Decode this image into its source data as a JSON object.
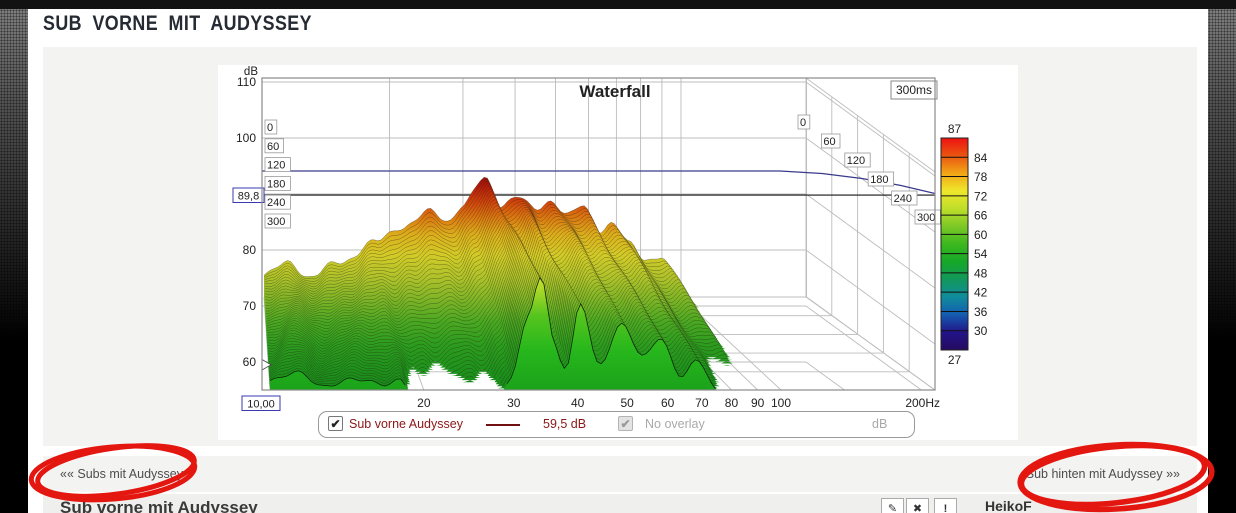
{
  "page": {
    "title": "SUB VORNE MIT AUDYSSEY",
    "nav": {
      "prev": "«« Subs mit Audyssey",
      "next": "Sub hinten mit Audyssey »»",
      "annotation_color": "#e41710"
    },
    "post": {
      "heading": "Sub vorne mit Audyssey",
      "author": "HeikoF",
      "actions": {
        "edit": "✎",
        "delete": "✖",
        "report": "!"
      }
    }
  },
  "chart_data": {
    "type": "waterfall",
    "title": "Waterfall",
    "window": "300ms",
    "ylabel": "dB",
    "y_ticks": [
      110,
      100,
      90,
      80,
      70,
      60
    ],
    "ylim": [
      55,
      110
    ],
    "x_ticks": [
      20,
      30,
      40,
      50,
      60,
      70,
      80,
      90,
      100
    ],
    "x_end_label": "200Hz",
    "xlim_hz": [
      10,
      200
    ],
    "time_ticks_ms": [
      0,
      60,
      120,
      180,
      240,
      300
    ],
    "cursor": {
      "freq": "10,00",
      "db_line": "89,8",
      "spl": "59,5 dB"
    },
    "overlay_line": {
      "color": "#3a3a8c",
      "flat_db": 93.8,
      "end_db": 89.8
    },
    "colorbar": {
      "max": 87,
      "min": 27,
      "ticks": [
        84,
        78,
        72,
        66,
        60,
        54,
        48,
        42,
        36,
        30
      ],
      "stops": [
        "#ee1212",
        "#ea5510",
        "#f2a616",
        "#efe72c",
        "#bede2a",
        "#7cc826",
        "#3cb81e",
        "#16a828",
        "#12985c",
        "#108c9c",
        "#145cb0",
        "#221488",
        "#250b60"
      ]
    },
    "legend": {
      "checked": true,
      "series": "Sub vorne Audyssey",
      "series_color": "#8b1717",
      "value": "59,5 dB",
      "overlay": "No overlay",
      "overlay_unit": "dB"
    },
    "surface": {
      "envelope_db": [
        [
          0,
          75.5
        ],
        [
          0.06,
          77.8
        ],
        [
          0.11,
          75.2
        ],
        [
          0.18,
          77.8
        ],
        [
          0.27,
          81.5
        ],
        [
          0.33,
          84.2
        ],
        [
          0.4,
          86.8
        ],
        [
          0.44,
          85.2
        ],
        [
          0.475,
          88
        ],
        [
          0.53,
          92.7
        ],
        [
          0.566,
          88.2
        ],
        [
          0.607,
          89.6
        ],
        [
          0.65,
          87.1
        ],
        [
          0.69,
          88.9
        ],
        [
          0.729,
          86.3
        ],
        [
          0.763,
          87.7
        ],
        [
          0.806,
          83.6
        ],
        [
          0.835,
          85
        ],
        [
          0.878,
          80.9
        ],
        [
          0.914,
          78.2
        ],
        [
          0.95,
          79.1
        ],
        [
          1.0,
          72.9
        ],
        [
          1.05,
          66
        ],
        [
          1.12,
          60
        ],
        [
          1.32,
          50
        ]
      ],
      "decay_db": [
        [
          0,
          2.5
        ],
        [
          0.11,
          3
        ],
        [
          0.18,
          4
        ],
        [
          0.25,
          8
        ],
        [
          0.3,
          14
        ],
        [
          0.35,
          17
        ],
        [
          0.42,
          17
        ],
        [
          0.47,
          14
        ],
        [
          0.505,
          6
        ],
        [
          0.53,
          1
        ],
        [
          0.555,
          8
        ],
        [
          0.58,
          13
        ],
        [
          0.607,
          2.5
        ],
        [
          0.64,
          11
        ],
        [
          0.69,
          5
        ],
        [
          0.729,
          9
        ],
        [
          0.763,
          7
        ],
        [
          0.806,
          9
        ],
        [
          0.835,
          8
        ],
        [
          0.878,
          10
        ],
        [
          0.914,
          10
        ],
        [
          0.95,
          10
        ],
        [
          1.0,
          9
        ],
        [
          1.32,
          8
        ]
      ],
      "palette": [
        [
          170,
          "#7a0a06"
        ],
        [
          186,
          "#b41a0a"
        ],
        [
          202,
          "#d2440c"
        ],
        [
          218,
          "#db7a12"
        ],
        [
          235,
          "#dcaf1c"
        ],
        [
          255,
          "#d3cb28"
        ],
        [
          278,
          "#aec22a"
        ],
        [
          300,
          "#7cb426"
        ],
        [
          322,
          "#4aa822"
        ],
        [
          345,
          "#2c9c1e"
        ],
        [
          370,
          "#1e921c"
        ],
        [
          395,
          "#168518"
        ]
      ],
      "front_palette": [
        [
          265,
          "#eadf37"
        ],
        [
          288,
          "#b1d928"
        ],
        [
          315,
          "#57c51e"
        ],
        [
          350,
          "#27b71c"
        ],
        [
          392,
          "#1aa11a"
        ]
      ]
    }
  }
}
